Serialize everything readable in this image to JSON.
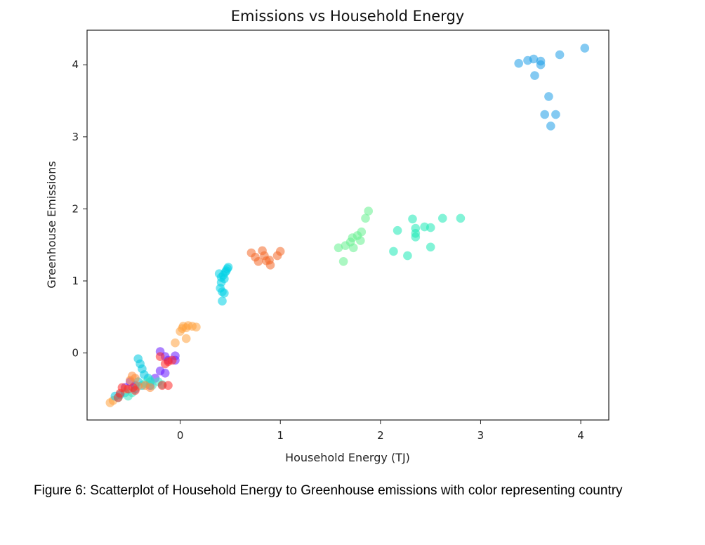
{
  "caption": "Figure 6: Scatterplot of Household Energy to Greenhouse emissions with color representing country",
  "chart_data": {
    "type": "scatter",
    "title": "Emissions vs Household Energy",
    "xlabel": "Household Energy (TJ)",
    "ylabel": "Greenhouse Emissions",
    "xlim": [
      -0.93,
      4.28
    ],
    "ylim": [
      -0.93,
      4.48
    ],
    "xticks": [
      0,
      1,
      2,
      3,
      4
    ],
    "yticks": [
      0,
      1,
      2,
      3,
      4
    ],
    "grid": false,
    "legend": "none",
    "marker_opacity": 0.55,
    "series": [
      {
        "color": "#1f9ee8",
        "points": [
          [
            3.38,
            4.02
          ],
          [
            3.47,
            4.06
          ],
          [
            3.53,
            4.08
          ],
          [
            3.6,
            4.05
          ],
          [
            3.6,
            4.0
          ],
          [
            3.54,
            3.85
          ],
          [
            3.79,
            4.14
          ],
          [
            4.04,
            4.23
          ],
          [
            3.68,
            3.56
          ],
          [
            3.64,
            3.31
          ],
          [
            3.75,
            3.31
          ],
          [
            3.7,
            3.15
          ]
        ]
      },
      {
        "color": "#1de9b6",
        "points": [
          [
            2.32,
            1.86
          ],
          [
            2.17,
            1.7
          ],
          [
            2.35,
            1.73
          ],
          [
            2.35,
            1.66
          ],
          [
            2.35,
            1.61
          ],
          [
            2.44,
            1.75
          ],
          [
            2.5,
            1.74
          ],
          [
            2.62,
            1.87
          ],
          [
            2.8,
            1.87
          ],
          [
            2.13,
            1.41
          ],
          [
            2.27,
            1.35
          ],
          [
            2.5,
            1.47
          ]
        ]
      },
      {
        "color": "#66f08f",
        "points": [
          [
            1.58,
            1.46
          ],
          [
            1.63,
            1.27
          ],
          [
            1.65,
            1.49
          ],
          [
            1.7,
            1.54
          ],
          [
            1.72,
            1.6
          ],
          [
            1.73,
            1.46
          ],
          [
            1.77,
            1.63
          ],
          [
            1.8,
            1.56
          ],
          [
            1.81,
            1.68
          ],
          [
            1.85,
            1.87
          ],
          [
            1.88,
            1.97
          ]
        ]
      },
      {
        "color": "#f4692a",
        "points": [
          [
            0.71,
            1.39
          ],
          [
            0.75,
            1.33
          ],
          [
            0.78,
            1.27
          ],
          [
            0.82,
            1.42
          ],
          [
            0.84,
            1.35
          ],
          [
            0.86,
            1.28
          ],
          [
            0.89,
            1.29
          ],
          [
            0.9,
            1.22
          ],
          [
            0.97,
            1.35
          ],
          [
            1.0,
            1.41
          ]
        ]
      },
      {
        "color": "#00d2e6",
        "points": [
          [
            0.39,
            1.1
          ],
          [
            0.4,
            0.9
          ],
          [
            0.41,
            0.98
          ],
          [
            0.41,
            1.05
          ],
          [
            0.42,
            0.85
          ],
          [
            0.42,
            0.72
          ],
          [
            0.43,
            1.08
          ],
          [
            0.44,
            1.03
          ],
          [
            0.45,
            1.12
          ],
          [
            0.46,
            1.14
          ],
          [
            0.47,
            1.17
          ],
          [
            0.48,
            1.19
          ],
          [
            0.44,
            0.83
          ]
        ]
      },
      {
        "color": "#ffa340",
        "points": [
          [
            -0.05,
            0.14
          ],
          [
            0.0,
            0.3
          ],
          [
            0.02,
            0.34
          ],
          [
            0.03,
            0.37
          ],
          [
            0.06,
            0.35
          ],
          [
            0.08,
            0.38
          ],
          [
            0.12,
            0.37
          ],
          [
            0.16,
            0.36
          ],
          [
            0.06,
            0.2
          ],
          [
            -0.7,
            -0.69
          ],
          [
            -0.67,
            -0.66
          ]
        ]
      },
      {
        "color": "#6a1bff",
        "points": [
          [
            -0.2,
            0.02
          ],
          [
            -0.15,
            -0.05
          ],
          [
            -0.12,
            -0.1
          ],
          [
            -0.05,
            -0.04
          ],
          [
            -0.05,
            -0.1
          ],
          [
            -0.15,
            -0.28
          ],
          [
            -0.2,
            -0.25
          ],
          [
            -0.5,
            -0.4
          ],
          [
            -0.45,
            -0.45
          ],
          [
            -0.55,
            -0.48
          ],
          [
            -0.3,
            -0.45
          ],
          [
            -0.25,
            -0.35
          ]
        ]
      },
      {
        "color": "#00c8e0",
        "points": [
          [
            -0.42,
            -0.08
          ],
          [
            -0.4,
            -0.15
          ],
          [
            -0.38,
            -0.22
          ],
          [
            -0.36,
            -0.3
          ],
          [
            -0.32,
            -0.35
          ],
          [
            -0.3,
            -0.4
          ],
          [
            -0.38,
            -0.45
          ],
          [
            -0.42,
            -0.4
          ],
          [
            -0.45,
            -0.5
          ],
          [
            -0.55,
            -0.55
          ],
          [
            -0.6,
            -0.58
          ],
          [
            -0.65,
            -0.6
          ]
        ]
      },
      {
        "color": "#3ce6c3",
        "points": [
          [
            -0.35,
            -0.42
          ],
          [
            -0.3,
            -0.38
          ],
          [
            -0.28,
            -0.45
          ],
          [
            -0.22,
            -0.4
          ],
          [
            -0.18,
            -0.44
          ],
          [
            -0.48,
            -0.55
          ],
          [
            -0.52,
            -0.6
          ],
          [
            -0.62,
            -0.62
          ]
        ]
      },
      {
        "color": "#ff8c3a",
        "points": [
          [
            -0.48,
            -0.32
          ],
          [
            -0.45,
            -0.35
          ],
          [
            -0.42,
            -0.46
          ],
          [
            -0.35,
            -0.45
          ],
          [
            -0.5,
            -0.38
          ],
          [
            -0.55,
            -0.5
          ],
          [
            -0.3,
            -0.48
          ]
        ]
      },
      {
        "color": "#ff2a2a",
        "points": [
          [
            -0.12,
            -0.12
          ],
          [
            -0.08,
            -0.1
          ],
          [
            -0.15,
            -0.15
          ],
          [
            -0.2,
            -0.05
          ],
          [
            -0.18,
            -0.45
          ],
          [
            -0.12,
            -0.45
          ],
          [
            -0.58,
            -0.48
          ],
          [
            -0.52,
            -0.5
          ],
          [
            -0.47,
            -0.48
          ],
          [
            -0.45,
            -0.52
          ],
          [
            -0.62,
            -0.62
          ],
          [
            -0.6,
            -0.56
          ]
        ]
      }
    ]
  }
}
